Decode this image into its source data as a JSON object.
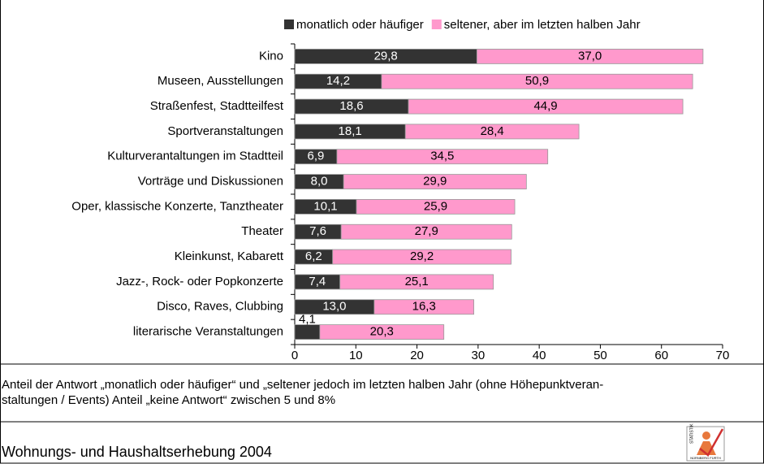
{
  "chart_data": {
    "type": "bar",
    "orientation": "horizontal",
    "stacked": true,
    "categories": [
      "Kino",
      "Museen, Ausstellungen",
      "Straßenfest, Stadtteilfest",
      "Sportveranstaltungen",
      "Kulturverantaltungen im Stadtteil",
      "Vorträge und Diskussionen",
      "Oper, klassische Konzerte, Tanztheater",
      "Theater",
      "Kleinkunst, Kabarett",
      "Jazz-, Rock- oder Popkonzerte",
      "Disco, Raves, Clubbing",
      "literarische Veranstaltungen"
    ],
    "series": [
      {
        "name": "monatlich oder häufiger",
        "color": "#333333",
        "values": [
          29.8,
          14.2,
          18.6,
          18.1,
          6.9,
          8.0,
          10.1,
          7.6,
          6.2,
          7.4,
          13.0,
          4.1
        ],
        "value_labels": [
          "29,8",
          "14,2",
          "18,6",
          "18,1",
          "6,9",
          "8,0",
          "10,1",
          "7,6",
          "6,2",
          "7,4",
          "13,0",
          "4,1"
        ]
      },
      {
        "name": "seltener, aber im letzten halben Jahr",
        "color": "#ff99cc",
        "values": [
          37.0,
          50.9,
          44.9,
          28.4,
          34.5,
          29.9,
          25.9,
          27.9,
          29.2,
          25.1,
          16.3,
          20.3
        ],
        "value_labels": [
          "37,0",
          "50,9",
          "44,9",
          "28,4",
          "34,5",
          "29,9",
          "25,9",
          "27,9",
          "29,2",
          "25,1",
          "16,3",
          "20,3"
        ]
      }
    ],
    "xlim": [
      0,
      70
    ],
    "xticks": [
      0,
      10,
      20,
      30,
      40,
      50,
      60,
      70
    ],
    "grid": false,
    "legend": "top"
  },
  "note_lines": [
    "Anteil der Antwort „monatlich oder häufiger“ und „seltener jedoch im letzten halben Jahr (ohne Höhepunktveran-",
    "staltungen / Events) Anteil „keine Antwort“ zwischen 5 und 8%"
  ],
  "source": "Wohnungs- und Haushaltserhebung 2004",
  "logo": {
    "label": "STATISTIK",
    "city": "NÜRNBERG FÜRTH"
  }
}
